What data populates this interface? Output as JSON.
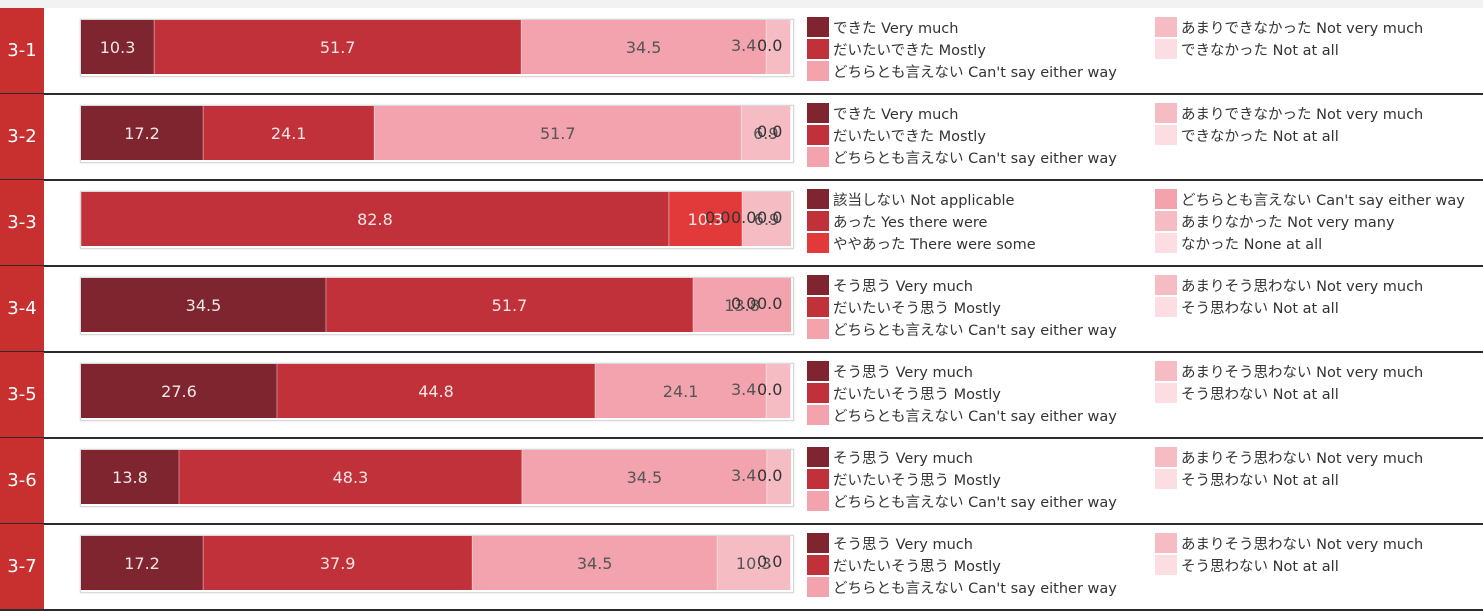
{
  "chart_data": {
    "type": "bar",
    "stacked": true,
    "orientation": "horizontal",
    "xlim": [
      0,
      100
    ],
    "colors": [
      "#7e2530",
      "#c1313a",
      "#f2a3ad",
      "#f6bcc4",
      "#fbdde2"
    ],
    "rows": [
      {
        "label": "3-1",
        "values": [
          10.3,
          51.7,
          34.5,
          3.4,
          0.0
        ],
        "value_labels": [
          "10.3",
          "51.7",
          "34.5",
          "3.4",
          "0.0"
        ],
        "colors": [
          "#7e2530",
          "#c1313a",
          "#f2a3ad",
          "#f6bcc4",
          "#fbdde2"
        ],
        "legend_left": [
          "できた Very much",
          "だいたいできた Mostly",
          "どちらとも言えない Can't say either way"
        ],
        "legend_right": [
          "あまりできなかった Not very much",
          "できなかった Not at all"
        ]
      },
      {
        "label": "3-2",
        "values": [
          17.2,
          24.1,
          51.7,
          6.9,
          0.0
        ],
        "value_labels": [
          "17.2",
          "24.1",
          "51.7",
          "6.9",
          "0.0"
        ],
        "colors": [
          "#7e2530",
          "#c1313a",
          "#f2a3ad",
          "#f6bcc4",
          "#fbdde2"
        ],
        "legend_left": [
          "できた Very much",
          "だいたいできた Mostly",
          "どちらとも言えない Can't say either way"
        ],
        "legend_right": [
          "あまりできなかった Not very much",
          "できなかった Not at all"
        ]
      },
      {
        "label": "3-3",
        "values": [
          0.0,
          82.8,
          10.3,
          0.0,
          6.9,
          0.0
        ],
        "value_labels": [
          "0.0",
          "82.8",
          "10.3",
          "0.0",
          "6.9",
          "0.0"
        ],
        "colors": [
          "#7e2530",
          "#c1313a",
          "#e23a3a",
          "#f2a3ad",
          "#f6bcc4",
          "#fbdde2"
        ],
        "legend_left": [
          "該当しない Not applicable",
          "あった Yes there were",
          "ややあった There were some"
        ],
        "legend_right": [
          "どちらとも言えない Can't say either way",
          "あまりなかった Not very many",
          "なかった None at all"
        ]
      },
      {
        "label": "3-4",
        "values": [
          34.5,
          51.7,
          13.8,
          0.0,
          0.0
        ],
        "value_labels": [
          "34.5",
          "51.7",
          "13.8",
          "0.0",
          "0.0"
        ],
        "colors": [
          "#7e2530",
          "#c1313a",
          "#f2a3ad",
          "#f6bcc4",
          "#fbdde2"
        ],
        "legend_left": [
          "そう思う Very much",
          "だいたいそう思う Mostly",
          "どちらとも言えない Can't say either way"
        ],
        "legend_right": [
          "あまりそう思わない Not very much",
          "そう思わない Not at all"
        ]
      },
      {
        "label": "3-5",
        "values": [
          27.6,
          44.8,
          24.1,
          3.4,
          0.0
        ],
        "value_labels": [
          "27.6",
          "44.8",
          "24.1",
          "3.4",
          "0.0"
        ],
        "colors": [
          "#7e2530",
          "#c1313a",
          "#f2a3ad",
          "#f6bcc4",
          "#fbdde2"
        ],
        "legend_left": [
          "そう思う Very much",
          "だいたいそう思う Mostly",
          "どちらとも言えない Can't say either way"
        ],
        "legend_right": [
          "あまりそう思わない Not very much",
          "そう思わない Not at all"
        ]
      },
      {
        "label": "3-6",
        "values": [
          13.8,
          48.3,
          34.5,
          3.4,
          0.0
        ],
        "value_labels": [
          "13.8",
          "48.3",
          "34.5",
          "3.4",
          "0.0"
        ],
        "colors": [
          "#7e2530",
          "#c1313a",
          "#f2a3ad",
          "#f6bcc4",
          "#fbdde2"
        ],
        "legend_left": [
          "そう思う Very much",
          "だいたいそう思う Mostly",
          "どちらとも言えない Can't say either way"
        ],
        "legend_right": [
          "あまりそう思わない Not very much",
          "そう思わない Not at all"
        ]
      },
      {
        "label": "3-7",
        "values": [
          17.2,
          37.9,
          34.5,
          10.3,
          0.0
        ],
        "value_labels": [
          "17.2",
          "37.9",
          "34.5",
          "10.3",
          "0.0"
        ],
        "colors": [
          "#7e2530",
          "#c1313a",
          "#f2a3ad",
          "#f6bcc4",
          "#fbdde2"
        ],
        "legend_left": [
          "そう思う Very much",
          "だいたいそう思う Mostly",
          "どちらとも言えない Can't say either way"
        ],
        "legend_right": [
          "あまりそう思わない Not very much",
          "そう思わない Not at all"
        ]
      }
    ]
  }
}
